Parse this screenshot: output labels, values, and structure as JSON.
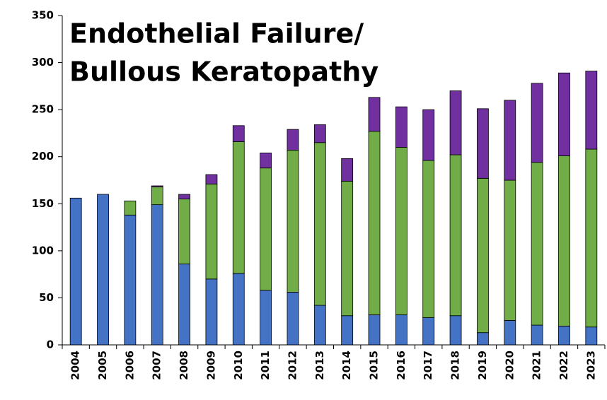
{
  "chart_data": {
    "type": "stacked_bar",
    "title": [
      "Endothelial Failure/",
      "Bullous Keratopathy"
    ],
    "categories": [
      "2004",
      "2005",
      "2006",
      "2007",
      "2008",
      "2009",
      "2010",
      "2011",
      "2012",
      "2013",
      "2014",
      "2015",
      "2016",
      "2017",
      "2018",
      "2019",
      "2020",
      "2021",
      "2022",
      "2023"
    ],
    "series": [
      {
        "color": "#4472c4",
        "values": [
          156,
          160,
          138,
          149,
          86,
          70,
          76,
          58,
          56,
          42,
          31,
          32,
          32,
          29,
          31,
          13,
          26,
          21,
          20,
          19
        ]
      },
      {
        "color": "#70ad47",
        "values": [
          0,
          0,
          15,
          19,
          69,
          101,
          140,
          130,
          151,
          173,
          143,
          195,
          178,
          167,
          171,
          164,
          149,
          173,
          181,
          189
        ]
      },
      {
        "color": "#7030a0",
        "values": [
          0,
          0,
          0,
          1,
          5,
          10,
          17,
          16,
          22,
          19,
          24,
          36,
          43,
          54,
          68,
          74,
          85,
          84,
          88,
          83
        ]
      }
    ],
    "ylim": [
      0,
      350
    ],
    "yticks": [
      0,
      50,
      100,
      150,
      200,
      250,
      300,
      350
    ]
  }
}
